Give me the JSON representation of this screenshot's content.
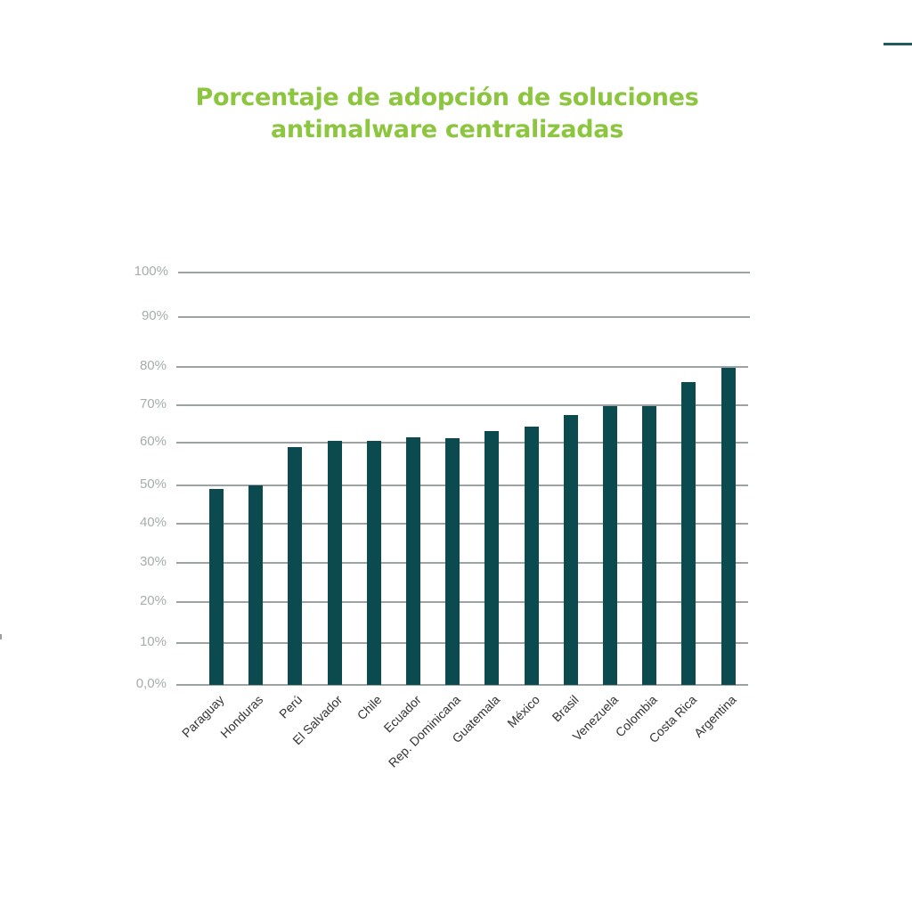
{
  "page": {
    "title_line1": "Porcentaje de adopción de soluciones",
    "title_line2": "antimalware centralizadas"
  },
  "colors": {
    "title": "#8cc63f",
    "bar": "#0b4a4f",
    "gridline": "#9da3a3",
    "tick_label": "#a7acac",
    "category_label": "#333333"
  },
  "chart_data": {
    "type": "bar",
    "title": "Porcentaje de adopción de soluciones antimalware centralizadas",
    "xlabel": "",
    "ylabel": "",
    "ylim": [
      0,
      100
    ],
    "y_ticks": [
      "0,0%",
      "10%",
      "20%",
      "30%",
      "40%",
      "50%",
      "60%",
      "70%",
      "80%",
      "90%",
      "100%"
    ],
    "grid": true,
    "legend": null,
    "categories": [
      "Paraguay",
      "Honduras",
      "Perú",
      "El Salvador",
      "Chile",
      "Ecuador",
      "Rep. Dominicana",
      "Guatemala",
      "México",
      "Brasil",
      "Venezuela",
      "Colombia",
      "Costa Rica",
      "Argentina"
    ],
    "values": [
      49,
      50,
      59,
      60.5,
      60.5,
      61.5,
      61.3,
      63,
      64.2,
      67.5,
      69.8,
      69.8,
      76,
      79.8
    ]
  }
}
